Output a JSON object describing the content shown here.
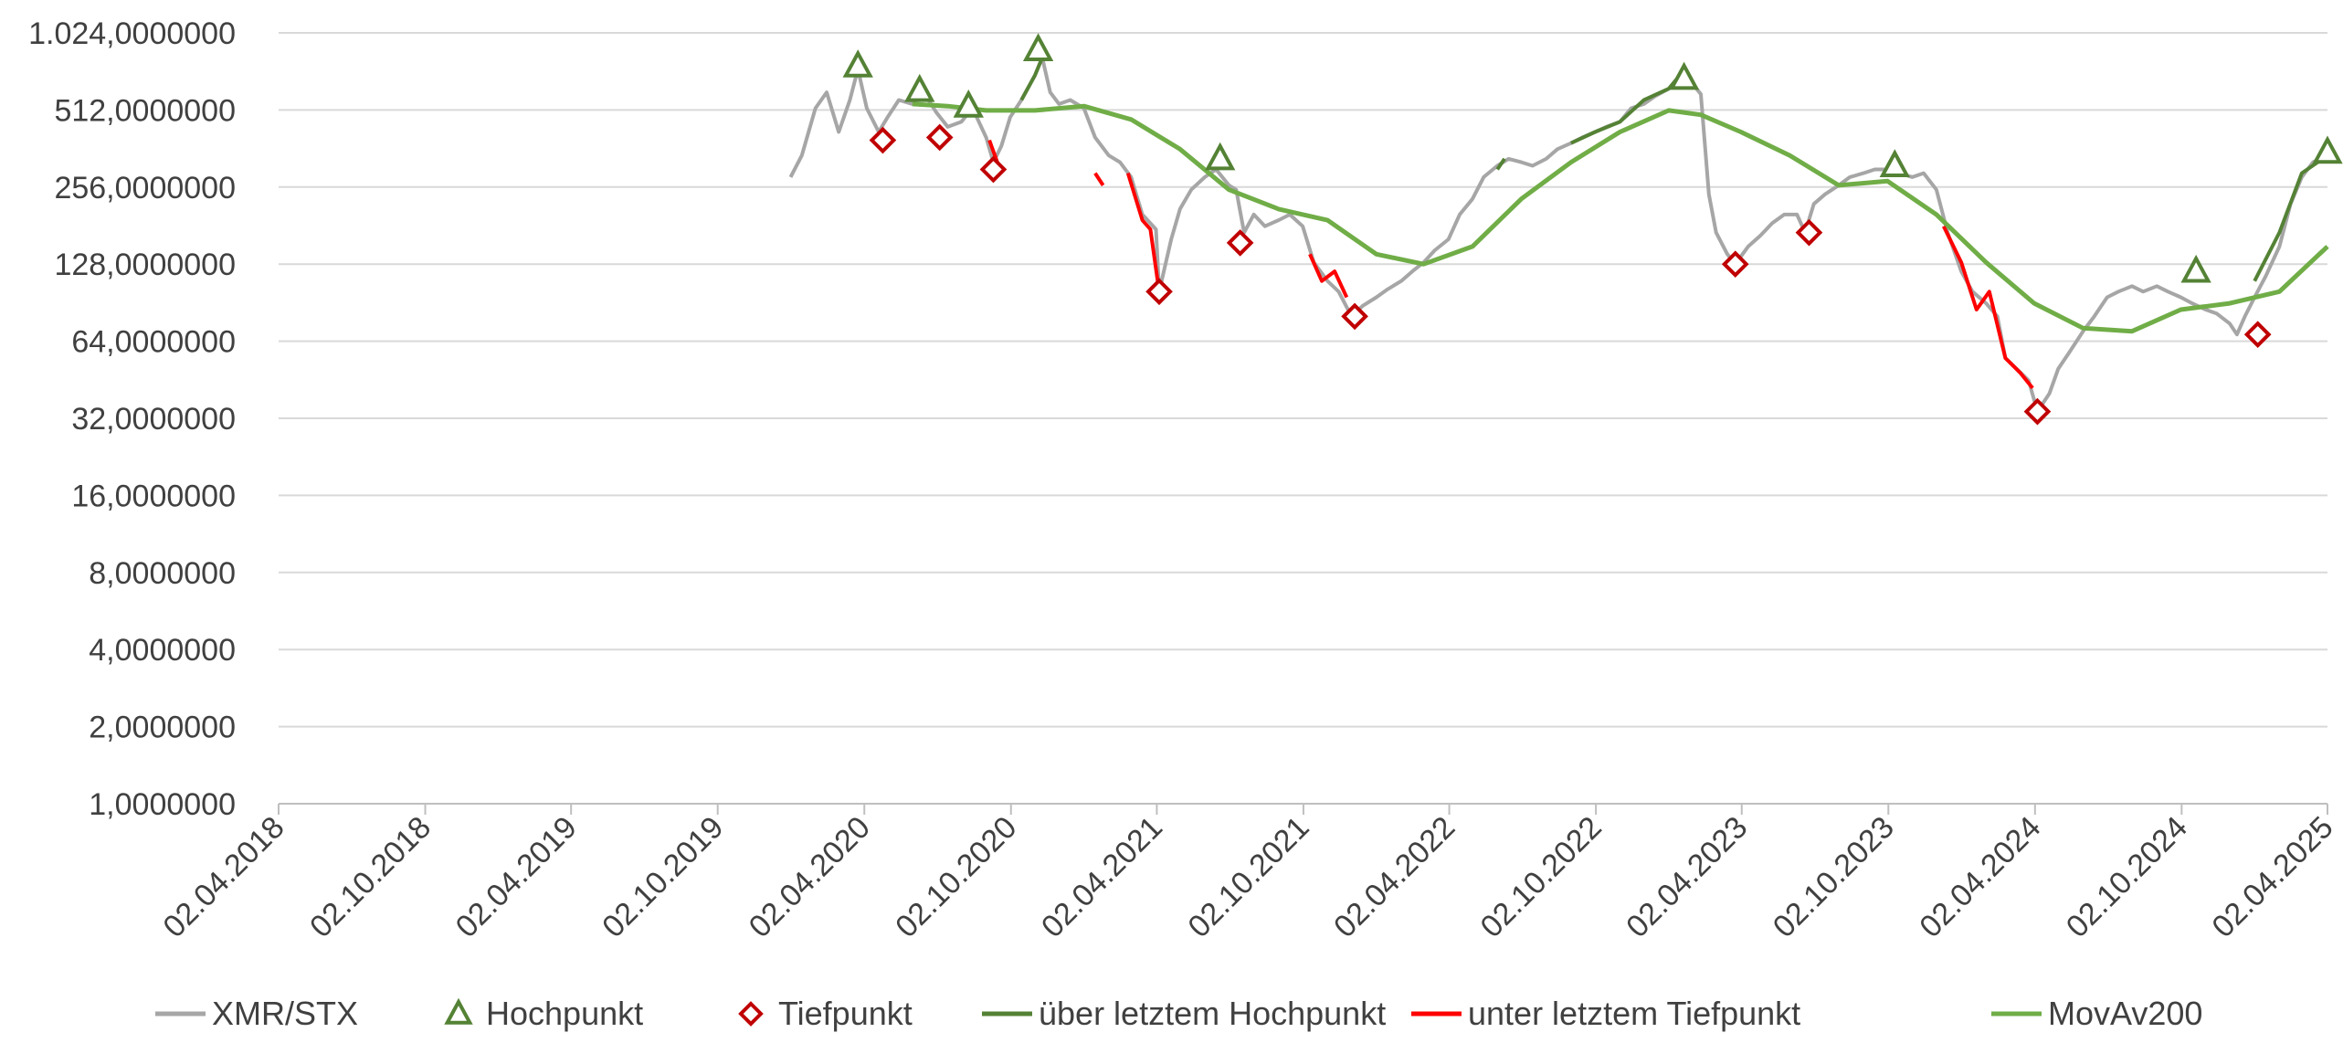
{
  "chart_data": {
    "type": "line",
    "y_scale": "log2",
    "ylim": [
      1,
      1024
    ],
    "y_ticks": [
      "1.024,0000000",
      "512,0000000",
      "256,0000000",
      "128,0000000",
      "64,0000000",
      "32,0000000",
      "16,0000000",
      "8,0000000",
      "4,0000000",
      "2,0000000",
      "1,0000000"
    ],
    "y_tick_values": [
      1024,
      512,
      256,
      128,
      64,
      32,
      16,
      8,
      4,
      2,
      1
    ],
    "xlim": [
      "2018-04-02",
      "2025-04-02"
    ],
    "x_ticks": [
      "02.04.2018",
      "02.10.2018",
      "02.04.2019",
      "02.10.2019",
      "02.04.2020",
      "02.10.2020",
      "02.04.2021",
      "02.10.2021",
      "02.04.2022",
      "02.10.2022",
      "02.04.2023",
      "02.10.2023",
      "02.04.2024",
      "02.10.2024",
      "02.04.2025"
    ],
    "grid": true,
    "legend_position": "bottom",
    "colors": {
      "price": "#a6a6a6",
      "above_high": "#548235",
      "below_low": "#ff0000",
      "movav": "#70ad47",
      "high_marker": "#548235",
      "low_marker": "#c00000",
      "grid": "#d9d9d9",
      "axis": "#bfbfbf",
      "text": "#404040"
    },
    "legend": [
      {
        "label": "XMR/STX",
        "kind": "line",
        "color": "#a6a6a6"
      },
      {
        "label": "Hochpunkt",
        "kind": "triangle",
        "color": "#548235"
      },
      {
        "label": "Tiefpunkt",
        "kind": "diamond",
        "color": "#c00000"
      },
      {
        "label": "über letztem Hochpunkt",
        "kind": "line",
        "color": "#548235"
      },
      {
        "label": "unter letztem Tiefpunkt",
        "kind": "line",
        "color": "#ff0000"
      },
      {
        "label": "MovAv200",
        "kind": "line",
        "color": "#70ad47"
      }
    ],
    "series": [
      {
        "name": "XMR/STX",
        "points": [
          [
            "2020-01-01",
            280
          ],
          [
            "2020-01-15",
            340
          ],
          [
            "2020-02-01",
            520
          ],
          [
            "2020-02-15",
            600
          ],
          [
            "2020-03-01",
            420
          ],
          [
            "2020-03-15",
            560
          ],
          [
            "2020-03-25",
            740
          ],
          [
            "2020-04-05",
            520
          ],
          [
            "2020-04-20",
            420
          ],
          [
            "2020-05-01",
            480
          ],
          [
            "2020-05-15",
            560
          ],
          [
            "2020-06-01",
            540
          ],
          [
            "2020-06-15",
            600
          ],
          [
            "2020-07-01",
            500
          ],
          [
            "2020-07-15",
            440
          ],
          [
            "2020-08-01",
            460
          ],
          [
            "2020-08-15",
            520
          ],
          [
            "2020-09-01",
            400
          ],
          [
            "2020-09-10",
            320
          ],
          [
            "2020-09-20",
            370
          ],
          [
            "2020-10-01",
            480
          ],
          [
            "2020-10-15",
            560
          ],
          [
            "2020-11-01",
            700
          ],
          [
            "2020-11-10",
            820
          ],
          [
            "2020-11-20",
            600
          ],
          [
            "2020-12-01",
            540
          ],
          [
            "2020-12-15",
            560
          ],
          [
            "2021-01-01",
            520
          ],
          [
            "2021-01-15",
            400
          ],
          [
            "2021-02-01",
            340
          ],
          [
            "2021-02-15",
            320
          ],
          [
            "2021-03-01",
            280
          ],
          [
            "2021-03-15",
            200
          ],
          [
            "2021-04-01",
            175
          ],
          [
            "2021-04-05",
            100
          ],
          [
            "2021-04-20",
            160
          ],
          [
            "2021-05-01",
            210
          ],
          [
            "2021-05-15",
            250
          ],
          [
            "2021-06-01",
            280
          ],
          [
            "2021-06-15",
            300
          ],
          [
            "2021-07-01",
            260
          ],
          [
            "2021-07-10",
            250
          ],
          [
            "2021-07-20",
            170
          ],
          [
            "2021-08-01",
            200
          ],
          [
            "2021-08-15",
            180
          ],
          [
            "2021-09-01",
            190
          ],
          [
            "2021-09-15",
            200
          ],
          [
            "2021-10-01",
            180
          ],
          [
            "2021-10-15",
            130
          ],
          [
            "2021-11-01",
            110
          ],
          [
            "2021-11-15",
            100
          ],
          [
            "2021-12-01",
            80
          ],
          [
            "2021-12-15",
            88
          ],
          [
            "2022-01-01",
            95
          ],
          [
            "2022-01-15",
            102
          ],
          [
            "2022-02-01",
            110
          ],
          [
            "2022-02-15",
            120
          ],
          [
            "2022-03-01",
            130
          ],
          [
            "2022-03-15",
            145
          ],
          [
            "2022-04-01",
            160
          ],
          [
            "2022-04-15",
            200
          ],
          [
            "2022-05-01",
            230
          ],
          [
            "2022-05-15",
            280
          ],
          [
            "2022-06-01",
            310
          ],
          [
            "2022-06-15",
            330
          ],
          [
            "2022-07-01",
            320
          ],
          [
            "2022-07-15",
            310
          ],
          [
            "2022-08-01",
            330
          ],
          [
            "2022-08-15",
            360
          ],
          [
            "2022-09-01",
            380
          ],
          [
            "2022-09-15",
            400
          ],
          [
            "2022-10-01",
            420
          ],
          [
            "2022-10-15",
            440
          ],
          [
            "2022-11-01",
            460
          ],
          [
            "2022-11-15",
            520
          ],
          [
            "2022-12-01",
            540
          ],
          [
            "2022-12-15",
            580
          ],
          [
            "2023-01-01",
            620
          ],
          [
            "2023-01-15",
            700
          ],
          [
            "2023-02-01",
            640
          ],
          [
            "2023-02-10",
            590
          ],
          [
            "2023-02-20",
            240
          ],
          [
            "2023-03-01",
            170
          ],
          [
            "2023-03-15",
            140
          ],
          [
            "2023-03-25",
            128
          ],
          [
            "2023-04-10",
            150
          ],
          [
            "2023-04-25",
            165
          ],
          [
            "2023-05-10",
            185
          ],
          [
            "2023-05-25",
            200
          ],
          [
            "2023-06-10",
            200
          ],
          [
            "2023-06-20",
            170
          ],
          [
            "2023-07-01",
            220
          ],
          [
            "2023-07-15",
            240
          ],
          [
            "2023-08-01",
            260
          ],
          [
            "2023-08-15",
            280
          ],
          [
            "2023-09-01",
            290
          ],
          [
            "2023-09-15",
            300
          ],
          [
            "2023-10-01",
            300
          ],
          [
            "2023-10-15",
            290
          ],
          [
            "2023-11-01",
            280
          ],
          [
            "2023-11-15",
            290
          ],
          [
            "2023-12-01",
            250
          ],
          [
            "2023-12-15",
            170
          ],
          [
            "2024-01-01",
            120
          ],
          [
            "2024-01-15",
            100
          ],
          [
            "2024-02-01",
            90
          ],
          [
            "2024-02-15",
            80
          ],
          [
            "2024-02-25",
            55
          ],
          [
            "2024-03-10",
            50
          ],
          [
            "2024-03-25",
            45
          ],
          [
            "2024-04-05",
            34
          ],
          [
            "2024-04-20",
            40
          ],
          [
            "2024-05-01",
            50
          ],
          [
            "2024-05-15",
            58
          ],
          [
            "2024-06-01",
            70
          ],
          [
            "2024-06-15",
            80
          ],
          [
            "2024-07-01",
            95
          ],
          [
            "2024-07-15",
            100
          ],
          [
            "2024-08-01",
            105
          ],
          [
            "2024-08-15",
            100
          ],
          [
            "2024-09-01",
            105
          ],
          [
            "2024-09-15",
            100
          ],
          [
            "2024-10-01",
            95
          ],
          [
            "2024-10-15",
            90
          ],
          [
            "2024-11-01",
            85
          ],
          [
            "2024-11-15",
            82
          ],
          [
            "2024-12-01",
            75
          ],
          [
            "2024-12-10",
            68
          ],
          [
            "2024-12-20",
            80
          ],
          [
            "2025-01-01",
            95
          ],
          [
            "2025-01-15",
            115
          ],
          [
            "2025-02-01",
            150
          ],
          [
            "2025-02-15",
            220
          ],
          [
            "2025-03-01",
            280
          ],
          [
            "2025-03-15",
            320
          ],
          [
            "2025-04-02",
            340
          ]
        ]
      },
      {
        "name": "über letztem Hochpunkt",
        "segments": [
          [
            [
              "2020-10-15",
              560
            ],
            [
              "2020-11-01",
              700
            ],
            [
              "2020-11-10",
              820
            ]
          ],
          [
            [
              "2022-06-01",
              300
            ],
            [
              "2022-06-10",
              330
            ]
          ],
          [
            [
              "2022-09-01",
              380
            ],
            [
              "2022-10-01",
              420
            ],
            [
              "2022-11-01",
              460
            ],
            [
              "2022-12-01",
              560
            ],
            [
              "2023-01-01",
              620
            ],
            [
              "2023-01-15",
              700
            ]
          ],
          [
            [
              "2025-01-01",
              110
            ],
            [
              "2025-02-01",
              170
            ],
            [
              "2025-03-01",
              290
            ],
            [
              "2025-04-02",
              340
            ]
          ]
        ]
      },
      {
        "name": "unter letztem Tiefpunkt",
        "segments": [
          [
            [
              "2020-09-05",
              390
            ],
            [
              "2020-09-15",
              320
            ]
          ],
          [
            [
              "2021-01-15",
              290
            ],
            [
              "2021-01-25",
              260
            ]
          ],
          [
            [
              "2021-02-25",
              290
            ],
            [
              "2021-03-15",
              190
            ],
            [
              "2021-03-25",
              175
            ],
            [
              "2021-04-05",
              100
            ]
          ],
          [
            [
              "2021-10-10",
              140
            ],
            [
              "2021-10-25",
              110
            ],
            [
              "2021-11-10",
              120
            ],
            [
              "2021-11-25",
              95
            ]
          ],
          [
            [
              "2023-12-10",
              180
            ],
            [
              "2024-01-01",
              130
            ],
            [
              "2024-01-20",
              85
            ],
            [
              "2024-02-05",
              100
            ],
            [
              "2024-02-25",
              55
            ],
            [
              "2024-03-15",
              48
            ],
            [
              "2024-03-30",
              42
            ]
          ]
        ]
      },
      {
        "name": "MovAv200",
        "points": [
          [
            "2020-06-01",
            540
          ],
          [
            "2020-07-15",
            530
          ],
          [
            "2020-09-01",
            510
          ],
          [
            "2020-11-01",
            510
          ],
          [
            "2021-01-01",
            530
          ],
          [
            "2021-03-01",
            470
          ],
          [
            "2021-05-01",
            360
          ],
          [
            "2021-07-01",
            250
          ],
          [
            "2021-09-01",
            210
          ],
          [
            "2021-11-01",
            190
          ],
          [
            "2022-01-01",
            140
          ],
          [
            "2022-03-01",
            128
          ],
          [
            "2022-05-01",
            150
          ],
          [
            "2022-07-01",
            230
          ],
          [
            "2022-09-01",
            320
          ],
          [
            "2022-11-01",
            420
          ],
          [
            "2023-01-01",
            510
          ],
          [
            "2023-02-10",
            490
          ],
          [
            "2023-04-01",
            420
          ],
          [
            "2023-06-01",
            340
          ],
          [
            "2023-08-01",
            260
          ],
          [
            "2023-10-01",
            270
          ],
          [
            "2023-12-01",
            200
          ],
          [
            "2024-02-01",
            130
          ],
          [
            "2024-04-01",
            90
          ],
          [
            "2024-06-01",
            72
          ],
          [
            "2024-08-01",
            70
          ],
          [
            "2024-10-01",
            85
          ],
          [
            "2024-12-01",
            90
          ],
          [
            "2025-02-01",
            100
          ],
          [
            "2025-04-02",
            150
          ]
        ]
      },
      {
        "name": "Hochpunkt",
        "markers": [
          [
            "2020-03-25",
            760
          ],
          [
            "2020-06-10",
            610
          ],
          [
            "2020-08-10",
            530
          ],
          [
            "2020-11-05",
            880
          ],
          [
            "2021-06-20",
            330
          ],
          [
            "2023-01-20",
            680
          ],
          [
            "2023-10-10",
            310
          ],
          [
            "2024-10-20",
            120
          ],
          [
            "2025-04-02",
            350
          ]
        ]
      },
      {
        "name": "Tiefpunkt",
        "markers": [
          [
            "2020-04-25",
            390
          ],
          [
            "2020-07-05",
            400
          ],
          [
            "2020-09-10",
            300
          ],
          [
            "2021-04-05",
            100
          ],
          [
            "2021-07-15",
            155
          ],
          [
            "2021-12-05",
            80
          ],
          [
            "2023-03-25",
            128
          ],
          [
            "2023-06-25",
            170
          ],
          [
            "2024-04-05",
            34
          ],
          [
            "2025-01-05",
            68
          ]
        ]
      }
    ]
  }
}
